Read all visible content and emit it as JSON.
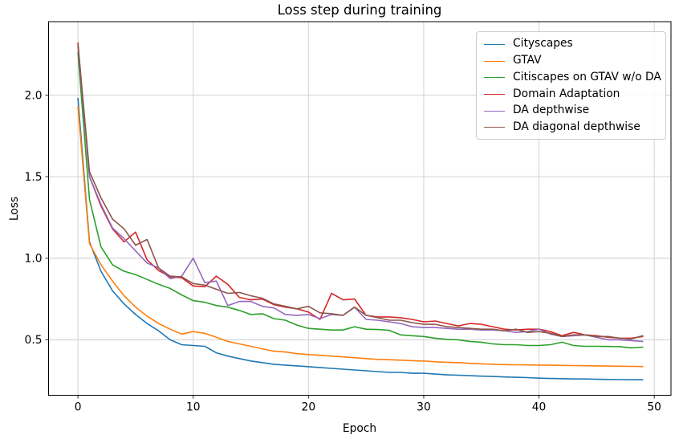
{
  "accent_colors": {
    "grid": "#cdcdcd",
    "spine": "#000000",
    "tick": "#262626"
  },
  "chart_data": {
    "type": "line",
    "title": "Loss step during training",
    "xlabel": "Epoch",
    "ylabel": "Loss",
    "grid": true,
    "legend_position": "upper right",
    "xlim": [
      -2.55,
      51.45
    ],
    "ylim": [
      0.16,
      2.45
    ],
    "xticks": [
      0,
      10,
      20,
      30,
      40,
      50
    ],
    "xtick_labels": [
      "0",
      "10",
      "20",
      "30",
      "40",
      "50"
    ],
    "yticks": [
      0.5,
      1.0,
      1.5,
      2.0
    ],
    "ytick_labels": [
      "0.5",
      "1.0",
      "1.5",
      "2.0"
    ],
    "x": [
      0,
      1,
      2,
      3,
      4,
      5,
      6,
      7,
      8,
      9,
      10,
      11,
      12,
      13,
      14,
      15,
      16,
      17,
      18,
      19,
      20,
      21,
      22,
      23,
      24,
      25,
      26,
      27,
      28,
      29,
      30,
      31,
      32,
      33,
      34,
      35,
      36,
      37,
      38,
      39,
      40,
      41,
      42,
      43,
      44,
      45,
      46,
      47,
      48,
      49
    ],
    "series": [
      {
        "name": "Cityscapes",
        "color": "#1f77b4",
        "values": [
          1.98,
          1.1,
          0.92,
          0.8,
          0.72,
          0.655,
          0.6,
          0.555,
          0.5,
          0.47,
          0.465,
          0.46,
          0.42,
          0.4,
          0.385,
          0.37,
          0.36,
          0.35,
          0.345,
          0.34,
          0.335,
          0.33,
          0.325,
          0.32,
          0.315,
          0.31,
          0.305,
          0.3,
          0.3,
          0.295,
          0.295,
          0.29,
          0.285,
          0.283,
          0.28,
          0.277,
          0.275,
          0.272,
          0.27,
          0.268,
          0.265,
          0.263,
          0.262,
          0.26,
          0.26,
          0.258,
          0.257,
          0.256,
          0.255,
          0.255
        ]
      },
      {
        "name": "GTAV",
        "color": "#ff7f0e",
        "values": [
          1.93,
          1.09,
          0.96,
          0.86,
          0.77,
          0.7,
          0.645,
          0.6,
          0.565,
          0.535,
          0.55,
          0.54,
          0.515,
          0.49,
          0.475,
          0.46,
          0.445,
          0.43,
          0.425,
          0.415,
          0.41,
          0.405,
          0.4,
          0.395,
          0.39,
          0.385,
          0.38,
          0.378,
          0.375,
          0.372,
          0.37,
          0.365,
          0.362,
          0.36,
          0.356,
          0.353,
          0.35,
          0.348,
          0.347,
          0.346,
          0.345,
          0.344,
          0.343,
          0.342,
          0.341,
          0.34,
          0.339,
          0.338,
          0.337,
          0.336
        ]
      },
      {
        "name": "Citiscapes on GTAV w/o DA",
        "color": "#2ca02c",
        "values": [
          2.26,
          1.36,
          1.07,
          0.96,
          0.92,
          0.9,
          0.87,
          0.84,
          0.815,
          0.775,
          0.74,
          0.73,
          0.71,
          0.7,
          0.68,
          0.655,
          0.66,
          0.63,
          0.62,
          0.59,
          0.57,
          0.565,
          0.56,
          0.56,
          0.58,
          0.565,
          0.563,
          0.558,
          0.53,
          0.525,
          0.52,
          0.51,
          0.503,
          0.5,
          0.49,
          0.485,
          0.475,
          0.47,
          0.47,
          0.465,
          0.465,
          0.47,
          0.485,
          0.465,
          0.46,
          0.46,
          0.459,
          0.458,
          0.45,
          0.455
        ]
      },
      {
        "name": "Domain Adaptation",
        "color": "#d62728",
        "values": [
          2.32,
          1.5,
          1.32,
          1.18,
          1.1,
          1.16,
          0.99,
          0.925,
          0.885,
          0.88,
          0.83,
          0.825,
          0.89,
          0.84,
          0.76,
          0.745,
          0.75,
          0.715,
          0.7,
          0.69,
          0.67,
          0.625,
          0.785,
          0.745,
          0.75,
          0.65,
          0.64,
          0.64,
          0.635,
          0.625,
          0.61,
          0.615,
          0.6,
          0.585,
          0.6,
          0.595,
          0.58,
          0.565,
          0.56,
          0.565,
          0.565,
          0.55,
          0.525,
          0.545,
          0.53,
          0.525,
          0.515,
          0.51,
          0.51,
          0.52
        ]
      },
      {
        "name": "DA depthwise",
        "color": "#9467bd",
        "values": [
          2.3,
          1.5,
          1.33,
          1.185,
          1.12,
          1.045,
          0.97,
          0.94,
          0.875,
          0.89,
          1.0,
          0.85,
          0.86,
          0.71,
          0.735,
          0.735,
          0.705,
          0.695,
          0.655,
          0.65,
          0.655,
          0.63,
          0.655,
          0.65,
          0.7,
          0.625,
          0.62,
          0.61,
          0.6,
          0.58,
          0.575,
          0.575,
          0.57,
          0.565,
          0.565,
          0.56,
          0.56,
          0.555,
          0.545,
          0.55,
          0.565,
          0.535,
          0.52,
          0.525,
          0.53,
          0.515,
          0.5,
          0.5,
          0.495,
          0.49
        ]
      },
      {
        "name": "DA diagonal depthwise",
        "color": "#8c564b",
        "values": [
          2.31,
          1.53,
          1.37,
          1.24,
          1.18,
          1.08,
          1.115,
          0.94,
          0.89,
          0.885,
          0.845,
          0.835,
          0.81,
          0.785,
          0.79,
          0.77,
          0.755,
          0.72,
          0.705,
          0.69,
          0.705,
          0.665,
          0.66,
          0.65,
          0.7,
          0.65,
          0.635,
          0.62,
          0.62,
          0.605,
          0.595,
          0.595,
          0.58,
          0.575,
          0.57,
          0.565,
          0.565,
          0.555,
          0.565,
          0.545,
          0.55,
          0.54,
          0.52,
          0.53,
          0.53,
          0.52,
          0.52,
          0.51,
          0.505,
          0.525
        ]
      }
    ]
  }
}
